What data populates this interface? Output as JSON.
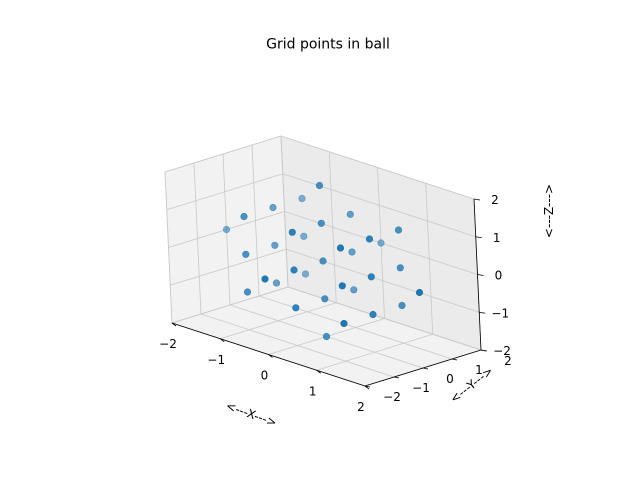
{
  "chart_data": {
    "type": "scatter",
    "projection": "3d",
    "title": "Grid points in ball",
    "xlabel": "<---X--->",
    "ylabel": "<---Y--->",
    "zlabel": "<---Z--->",
    "xlim": [
      -2,
      2
    ],
    "ylim": [
      -2,
      2
    ],
    "zlim": [
      -2,
      2
    ],
    "xticks": [
      "−2",
      "−1",
      "0",
      "1",
      "2"
    ],
    "yticks": [
      "−2",
      "−1",
      "0",
      "1",
      "2"
    ],
    "zticks": [
      "−2",
      "−1",
      "0",
      "1",
      "2"
    ],
    "grid": true,
    "marker_color": "#1f77b4",
    "points": [
      {
        "x": 0,
        "y": 0,
        "z": -2
      },
      {
        "x": -1,
        "y": -1,
        "z": -1
      },
      {
        "x": -1,
        "y": 0,
        "z": -1
      },
      {
        "x": -1,
        "y": 1,
        "z": -1
      },
      {
        "x": 0,
        "y": -1,
        "z": -1
      },
      {
        "x": 0,
        "y": 0,
        "z": -1
      },
      {
        "x": 0,
        "y": 1,
        "z": -1
      },
      {
        "x": 1,
        "y": -1,
        "z": -1
      },
      {
        "x": 1,
        "y": 0,
        "z": -1
      },
      {
        "x": 1,
        "y": 1,
        "z": -1
      },
      {
        "x": -2,
        "y": 0,
        "z": 0
      },
      {
        "x": -1,
        "y": -1,
        "z": 0
      },
      {
        "x": -1,
        "y": 0,
        "z": 0
      },
      {
        "x": -1,
        "y": 1,
        "z": 0
      },
      {
        "x": 0,
        "y": -2,
        "z": 0
      },
      {
        "x": 0,
        "y": -1,
        "z": 0
      },
      {
        "x": 0,
        "y": 0,
        "z": 0
      },
      {
        "x": 0,
        "y": 1,
        "z": 0
      },
      {
        "x": 0,
        "y": 2,
        "z": 0
      },
      {
        "x": 1,
        "y": -1,
        "z": 0
      },
      {
        "x": 1,
        "y": 0,
        "z": 0
      },
      {
        "x": 1,
        "y": 1,
        "z": 0
      },
      {
        "x": 2,
        "y": 0,
        "z": 0
      },
      {
        "x": -1,
        "y": -1,
        "z": 1
      },
      {
        "x": -1,
        "y": 0,
        "z": 1
      },
      {
        "x": -1,
        "y": 1,
        "z": 1
      },
      {
        "x": 0,
        "y": -1,
        "z": 1
      },
      {
        "x": 0,
        "y": 0,
        "z": 1
      },
      {
        "x": 0,
        "y": 1,
        "z": 1
      },
      {
        "x": 1,
        "y": -1,
        "z": 1
      },
      {
        "x": 1,
        "y": 0,
        "z": 1
      },
      {
        "x": 1,
        "y": 1,
        "z": 1
      },
      {
        "x": 0,
        "y": 0,
        "z": 2
      }
    ]
  }
}
